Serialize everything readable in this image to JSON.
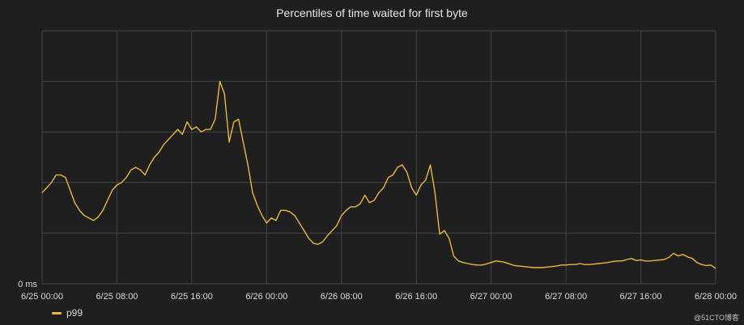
{
  "colors": {
    "background": "#1f1f20",
    "grid": "#444444",
    "series": "#eab839",
    "text": "#d8d9da"
  },
  "chart_data": {
    "type": "line",
    "title": "Percentiles of time waited for first byte",
    "xlabel": "",
    "ylabel": "",
    "x_unit": "hours since 6/25 00:00",
    "xlim": [
      0,
      72
    ],
    "ylim": [
      0,
      5
    ],
    "y_ticks": [
      {
        "value": 0,
        "label": "0 ms"
      }
    ],
    "y_gridlines": [
      0,
      1,
      2,
      3,
      4,
      5
    ],
    "x_ticks": [
      {
        "value": 0,
        "label": "6/25 00:00"
      },
      {
        "value": 8,
        "label": "6/25 08:00"
      },
      {
        "value": 16,
        "label": "6/25 16:00"
      },
      {
        "value": 24,
        "label": "6/26 00:00"
      },
      {
        "value": 32,
        "label": "6/26 08:00"
      },
      {
        "value": 40,
        "label": "6/26 16:00"
      },
      {
        "value": 48,
        "label": "6/27 00:00"
      },
      {
        "value": 56,
        "label": "6/27 08:00"
      },
      {
        "value": 64,
        "label": "6/27 16:00"
      },
      {
        "value": 72,
        "label": "6/28 00:00"
      }
    ],
    "grid": true,
    "legend_position": "bottom-left",
    "series": [
      {
        "name": "p99",
        "color": "#eab839",
        "x": [
          0,
          0.5,
          1,
          1.5,
          2,
          2.5,
          3,
          3.5,
          4,
          4.5,
          5,
          5.5,
          6,
          6.5,
          7,
          7.5,
          8,
          8.5,
          9,
          9.5,
          10,
          10.5,
          11,
          11.5,
          12,
          12.5,
          13,
          13.5,
          14,
          14.5,
          15,
          15.5,
          16,
          16.5,
          17,
          17.5,
          18,
          18.5,
          19,
          19.5,
          20,
          20.5,
          21,
          21.5,
          22,
          22.5,
          23,
          23.5,
          24,
          24.5,
          25,
          25.5,
          26,
          26.5,
          27,
          27.5,
          28,
          28.5,
          29,
          29.5,
          30,
          30.5,
          31,
          31.5,
          32,
          32.5,
          33,
          33.5,
          34,
          34.5,
          35,
          35.5,
          36,
          36.5,
          37,
          37.5,
          38,
          38.5,
          39,
          39.5,
          40,
          40.5,
          41,
          41.5,
          42,
          42.5,
          43,
          43.5,
          44,
          44.5,
          45,
          45.5,
          46,
          46.5,
          47,
          47.5,
          48,
          48.5,
          49,
          49.5,
          50,
          50.5,
          51,
          51.5,
          52,
          52.5,
          53,
          53.5,
          54,
          54.5,
          55,
          55.5,
          56,
          56.5,
          57,
          57.5,
          58,
          58.5,
          59,
          59.5,
          60,
          60.5,
          61,
          61.5,
          62,
          62.5,
          63,
          63.5,
          64,
          64.5,
          65,
          65.5,
          66,
          66.5,
          67,
          67.5,
          68,
          68.5,
          69,
          69.5,
          70,
          70.5,
          71,
          71.5,
          72
        ],
        "values": [
          1.8,
          1.9,
          2.0,
          2.15,
          2.15,
          2.1,
          1.85,
          1.6,
          1.45,
          1.35,
          1.3,
          1.25,
          1.32,
          1.45,
          1.65,
          1.85,
          1.95,
          2.0,
          2.1,
          2.25,
          2.3,
          2.25,
          2.15,
          2.35,
          2.5,
          2.6,
          2.75,
          2.85,
          2.95,
          3.05,
          2.95,
          3.2,
          3.05,
          3.1,
          3.0,
          3.05,
          3.05,
          3.25,
          4.0,
          3.75,
          2.8,
          3.2,
          3.25,
          2.8,
          2.35,
          1.8,
          1.55,
          1.35,
          1.2,
          1.3,
          1.25,
          1.45,
          1.45,
          1.42,
          1.35,
          1.2,
          1.05,
          0.9,
          0.8,
          0.78,
          0.83,
          0.95,
          1.05,
          1.15,
          1.35,
          1.45,
          1.52,
          1.52,
          1.58,
          1.75,
          1.6,
          1.65,
          1.8,
          1.9,
          2.1,
          2.15,
          2.3,
          2.35,
          2.2,
          1.9,
          1.75,
          1.95,
          2.05,
          2.35,
          1.8,
          0.98,
          1.05,
          0.9,
          0.55,
          0.45,
          0.42,
          0.4,
          0.38,
          0.37,
          0.37,
          0.39,
          0.42,
          0.45,
          0.44,
          0.42,
          0.39,
          0.36,
          0.35,
          0.34,
          0.33,
          0.32,
          0.32,
          0.32,
          0.33,
          0.34,
          0.35,
          0.37,
          0.37,
          0.38,
          0.38,
          0.4,
          0.38,
          0.38,
          0.39,
          0.4,
          0.41,
          0.42,
          0.44,
          0.45,
          0.45,
          0.48,
          0.5,
          0.46,
          0.47,
          0.45,
          0.45,
          0.46,
          0.47,
          0.48,
          0.52,
          0.6,
          0.55,
          0.58,
          0.53,
          0.5,
          0.42,
          0.38,
          0.36,
          0.37,
          0.3
        ]
      }
    ]
  },
  "watermark": "@51CTO博客"
}
